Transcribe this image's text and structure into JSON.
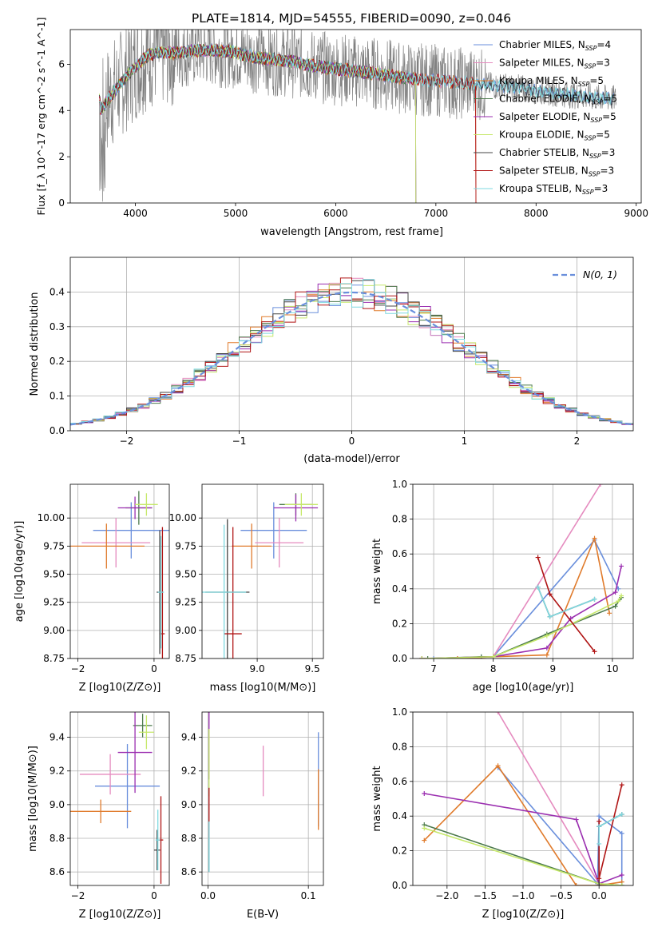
{
  "figure_title": "PLATE=1814, MJD=54555, FIBERID=0090, z=0.046",
  "colors": {
    "chabrier_miles": "#6a8fdc",
    "salpeter_miles": "#e58bbf",
    "kroupa_miles": "#e07b2c",
    "chabrier_elodie": "#4c7a4c",
    "salpeter_elodie": "#9b2fb0",
    "kroupa_elodie": "#c6e86a",
    "chabrier_stelib": "#444444",
    "salpeter_stelib": "#b01515",
    "kroupa_stelib": "#7fd9e0",
    "data": "#808080",
    "gauss": "#6a8fdc",
    "grid": "#b0b0b0"
  },
  "chart_data": [
    {
      "id": "spectrum",
      "type": "line",
      "xlabel": "wavelength [Angstrom, rest frame]",
      "ylabel": "Flux [f_λ 10^-17 erg cm^-2 s^-1 A^-1]",
      "xlim": [
        3350,
        9050
      ],
      "ylim": [
        0,
        7.5
      ],
      "xticks": [
        4000,
        5000,
        6000,
        7000,
        8000,
        9000
      ],
      "yticks": [
        0,
        2,
        4,
        6
      ],
      "grid": false,
      "legend_position": "top-right",
      "legend": [
        {
          "label": "Chabrier MILES, N",
          "sub": "SSP",
          "tail": "=4",
          "color_key": "chabrier_miles"
        },
        {
          "label": "Salpeter MILES, N",
          "sub": "SSP",
          "tail": "=3",
          "color_key": "salpeter_miles"
        },
        {
          "label": "Kroupa MILES, N",
          "sub": "SSP",
          "tail": "=5",
          "color_key": "kroupa_miles"
        },
        {
          "label": "Chabrier ELODIE, N",
          "sub": "SSP",
          "tail": "=5",
          "color_key": "chabrier_elodie"
        },
        {
          "label": "Salpeter ELODIE, N",
          "sub": "SSP",
          "tail": "=5",
          "color_key": "salpeter_elodie"
        },
        {
          "label": "Kroupa ELODIE, N",
          "sub": "SSP",
          "tail": "=5",
          "color_key": "kroupa_elodie"
        },
        {
          "label": "Chabrier STELIB, N",
          "sub": "SSP",
          "tail": "=3",
          "color_key": "chabrier_stelib"
        },
        {
          "label": "Salpeter STELIB, N",
          "sub": "SSP",
          "tail": "=3",
          "color_key": "salpeter_stelib"
        },
        {
          "label": "Kroupa STELIB, N",
          "sub": "SSP",
          "tail": "=3",
          "color_key": "kroupa_stelib"
        }
      ],
      "continuum": [
        [
          3650,
          4.0
        ],
        [
          3700,
          4.3
        ],
        [
          3800,
          4.9
        ],
        [
          3900,
          5.4
        ],
        [
          4000,
          5.9
        ],
        [
          4100,
          6.3
        ],
        [
          4200,
          6.5
        ],
        [
          4400,
          6.5
        ],
        [
          4600,
          6.6
        ],
        [
          4800,
          6.6
        ],
        [
          5000,
          6.5
        ],
        [
          5200,
          6.3
        ],
        [
          5400,
          6.2
        ],
        [
          5600,
          6.1
        ],
        [
          5800,
          5.9
        ],
        [
          6000,
          5.8
        ],
        [
          6200,
          5.7
        ],
        [
          6400,
          5.6
        ],
        [
          6600,
          5.45
        ],
        [
          6800,
          5.35
        ],
        [
          7000,
          5.3
        ],
        [
          7200,
          5.2
        ],
        [
          7400,
          5.15
        ],
        [
          7600,
          5.05
        ],
        [
          7800,
          5.0
        ],
        [
          8000,
          4.85
        ],
        [
          8200,
          4.75
        ],
        [
          8400,
          4.65
        ],
        [
          8600,
          4.55
        ],
        [
          8800,
          4.5
        ]
      ]
    },
    {
      "id": "residuals",
      "type": "bar",
      "xlabel": "(data-model)/error",
      "ylabel": "Normed distribution",
      "xlim": [
        -2.5,
        2.5
      ],
      "ylim": [
        0,
        0.5
      ],
      "xticks": [
        -2,
        -1,
        0,
        1,
        2
      ],
      "yticks": [
        0.0,
        0.1,
        0.2,
        0.3,
        0.4
      ],
      "grid": true,
      "legend_position": "top-right",
      "legend_label": "N(0, 1)",
      "bin_width": 0.1,
      "bin_start": -2.5
    },
    {
      "id": "age_vs_Z",
      "type": "scatter",
      "xlabel": "Z [log10(Z/Z⊙)]",
      "ylabel": "age [log10(age/yr)]",
      "xlim": [
        -2.2,
        0.4
      ],
      "ylim": [
        8.75,
        10.3
      ],
      "xticks": [
        -2,
        0
      ],
      "yticks": [
        8.75,
        9.0,
        9.25,
        9.5,
        9.75,
        10.0
      ],
      "grid": true,
      "points": [
        {
          "s": "chabrier_miles",
          "x": -0.6,
          "xerr": 1.0,
          "y": 9.89,
          "yerr": 0.25
        },
        {
          "s": "salpeter_miles",
          "x": -1.0,
          "xerr": 0.9,
          "y": 9.78,
          "yerr": 0.22
        },
        {
          "s": "kroupa_miles",
          "x": -1.25,
          "xerr": 1.0,
          "y": 9.75,
          "yerr": 0.2
        },
        {
          "s": "chabrier_elodie",
          "x": -0.4,
          "xerr": 0.35,
          "y": 10.09,
          "yerr": 0.15
        },
        {
          "s": "salpeter_elodie",
          "x": -0.5,
          "xerr": 0.45,
          "y": 10.09,
          "yerr": 0.1
        },
        {
          "s": "kroupa_elodie",
          "x": -0.2,
          "xerr": 0.3,
          "y": 10.12,
          "yerr": 0.1
        },
        {
          "s": "chabrier_stelib",
          "x": 0.15,
          "xerr": 0.08,
          "y": 9.34,
          "yerr": 0.55
        },
        {
          "s": "salpeter_stelib",
          "x": 0.22,
          "xerr": 0.06,
          "y": 8.97,
          "yerr": 0.95
        },
        {
          "s": "kroupa_stelib",
          "x": 0.18,
          "xerr": 0.08,
          "y": 9.34,
          "yerr": 0.5
        }
      ]
    },
    {
      "id": "age_vs_mass",
      "type": "scatter",
      "xlabel": "mass [log10(M/M⊙)]",
      "ylabel": "",
      "xlim": [
        8.5,
        9.6
      ],
      "ylim": [
        8.75,
        10.3
      ],
      "xticks": [
        9.0,
        9.5
      ],
      "yticks": [
        8.75,
        9.0,
        9.25,
        9.5,
        9.75,
        10.0
      ],
      "grid": true,
      "points": [
        {
          "s": "chabrier_miles",
          "x": 9.15,
          "xerr": 0.3,
          "y": 9.89,
          "yerr": 0.25
        },
        {
          "s": "salpeter_miles",
          "x": 9.2,
          "xerr": 0.22,
          "y": 9.78,
          "yerr": 0.22
        },
        {
          "s": "kroupa_miles",
          "x": 8.95,
          "xerr": 0.18,
          "y": 9.75,
          "yerr": 0.2
        },
        {
          "s": "chabrier_elodie",
          "x": 9.35,
          "xerr": 0.15,
          "y": 10.12,
          "yerr": 0.1
        },
        {
          "s": "salpeter_elodie",
          "x": 9.35,
          "xerr": 0.2,
          "y": 10.09,
          "yerr": 0.12
        },
        {
          "s": "kroupa_elodie",
          "x": 9.4,
          "xerr": 0.15,
          "y": 10.12,
          "yerr": 0.1
        },
        {
          "s": "chabrier_stelib",
          "x": 8.73,
          "xerr": 0.2,
          "y": 9.34,
          "yerr": 0.65
        },
        {
          "s": "salpeter_stelib",
          "x": 8.78,
          "xerr": 0.08,
          "y": 8.97,
          "yerr": 0.95
        },
        {
          "s": "kroupa_stelib",
          "x": 8.7,
          "xerr": 0.2,
          "y": 9.34,
          "yerr": 0.6
        }
      ]
    },
    {
      "id": "weight_vs_age",
      "type": "line",
      "xlabel": "age [log10(age/yr)]",
      "ylabel": "mass weight",
      "xlim": [
        6.65,
        10.35
      ],
      "ylim": [
        0,
        1.0
      ],
      "xticks": [
        7,
        8,
        9,
        10
      ],
      "yticks": [
        0.0,
        0.2,
        0.4,
        0.6,
        0.8,
        1.0
      ],
      "grid": true,
      "series": [
        {
          "s": "chabrier_miles",
          "x": [
            6.8,
            7.0,
            7.4,
            7.8,
            8.0,
            9.7,
            10.1
          ],
          "y": [
            0,
            0,
            0,
            0.01,
            0.01,
            0.68,
            0.4
          ]
        },
        {
          "s": "salpeter_miles",
          "x": [
            6.8,
            7.4,
            8.0,
            9.8
          ],
          "y": [
            0,
            0,
            0.01,
            1.0
          ]
        },
        {
          "s": "kroupa_miles",
          "x": [
            6.8,
            7.4,
            8.0,
            8.9,
            9.7,
            9.95
          ],
          "y": [
            0,
            0,
            0.01,
            0.02,
            0.69,
            0.26
          ]
        },
        {
          "s": "chabrier_elodie",
          "x": [
            6.9,
            7.8,
            8.0,
            8.9,
            10.05,
            10.15
          ],
          "y": [
            0,
            0.01,
            0.01,
            0.14,
            0.3,
            0.35
          ]
        },
        {
          "s": "salpeter_elodie",
          "x": [
            6.8,
            8.0,
            8.9,
            9.3,
            10.05,
            10.15
          ],
          "y": [
            0,
            0.01,
            0.06,
            0.23,
            0.38,
            0.53
          ]
        },
        {
          "s": "kroupa_elodie",
          "x": [
            6.8,
            8.0,
            8.9,
            10.1,
            10.15
          ],
          "y": [
            0,
            0.01,
            0.13,
            0.33,
            0.36
          ]
        },
        {
          "s": "chabrier_stelib",
          "x": [
            8.75,
            8.95,
            9.7
          ],
          "y": [
            0.41,
            0.24,
            0.34
          ]
        },
        {
          "s": "salpeter_stelib",
          "x": [
            8.75,
            8.95,
            9.7
          ],
          "y": [
            0.58,
            0.37,
            0.04
          ]
        },
        {
          "s": "kroupa_stelib",
          "x": [
            8.75,
            8.95,
            9.7
          ],
          "y": [
            0.41,
            0.24,
            0.34
          ]
        }
      ]
    },
    {
      "id": "mass_vs_Z",
      "type": "scatter",
      "xlabel": "Z [log10(Z/Z⊙)]",
      "ylabel": "mass [log10(M/M⊙)]",
      "xlim": [
        -2.2,
        0.4
      ],
      "ylim": [
        8.52,
        9.55
      ],
      "xticks": [
        -2,
        0
      ],
      "yticks": [
        8.6,
        8.8,
        9.0,
        9.2,
        9.4
      ],
      "grid": true,
      "points": [
        {
          "s": "chabrier_miles",
          "x": -0.7,
          "xerr": 0.85,
          "y": 9.11,
          "yerr": 0.25
        },
        {
          "s": "salpeter_miles",
          "x": -1.15,
          "xerr": 0.8,
          "y": 9.18,
          "yerr": 0.12
        },
        {
          "s": "kroupa_miles",
          "x": -1.4,
          "xerr": 0.8,
          "y": 8.96,
          "yerr": 0.07
        },
        {
          "s": "chabrier_elodie",
          "x": -0.3,
          "xerr": 0.25,
          "y": 9.47,
          "yerr": 0.07
        },
        {
          "s": "salpeter_elodie",
          "x": -0.5,
          "xerr": 0.45,
          "y": 9.31,
          "yerr": 0.24
        },
        {
          "s": "kroupa_elodie",
          "x": -0.2,
          "xerr": 0.2,
          "y": 9.43,
          "yerr": 0.1
        },
        {
          "s": "chabrier_stelib",
          "x": 0.08,
          "xerr": 0.08,
          "y": 8.73,
          "yerr": 0.12
        },
        {
          "s": "salpeter_stelib",
          "x": 0.18,
          "xerr": 0.06,
          "y": 8.79,
          "yerr": 0.26
        },
        {
          "s": "kroupa_stelib",
          "x": 0.1,
          "xerr": 0.06,
          "y": 8.79,
          "yerr": 0.18
        }
      ]
    },
    {
      "id": "mass_vs_ebv",
      "type": "scatter",
      "xlabel": "E(B-V)",
      "ylabel": "",
      "xlim": [
        -0.006,
        0.115
      ],
      "ylim": [
        8.52,
        9.55
      ],
      "xticks": [
        0.0,
        0.1
      ],
      "yticks": [
        8.6,
        8.8,
        9.0,
        9.2,
        9.4
      ],
      "grid": true,
      "points": [
        {
          "s": "chabrier_miles",
          "x": 0.11,
          "xerr": 0,
          "y": 9.15,
          "yerr": 0.28
        },
        {
          "s": "salpeter_miles",
          "x": 0.055,
          "xerr": 0,
          "y": 9.2,
          "yerr": 0.15
        },
        {
          "s": "kroupa_miles",
          "x": 0.11,
          "xerr": 0,
          "y": 9.03,
          "yerr": 0.18
        },
        {
          "s": "chabrier_elodie",
          "x": 0.001,
          "xerr": 0,
          "y": 9.3,
          "yerr": 0.15
        },
        {
          "s": "salpeter_elodie",
          "x": 0.001,
          "xerr": 0,
          "y": 9.35,
          "yerr": 0.2
        },
        {
          "s": "kroupa_elodie",
          "x": 0.001,
          "xerr": 0,
          "y": 9.25,
          "yerr": 0.2
        },
        {
          "s": "chabrier_stelib",
          "x": 0.001,
          "xerr": 0,
          "y": 8.75,
          "yerr": 0.15
        },
        {
          "s": "salpeter_stelib",
          "x": 0.001,
          "xerr": 0,
          "y": 8.95,
          "yerr": 0.15
        },
        {
          "s": "kroupa_stelib",
          "x": 0.001,
          "xerr": 0,
          "y": 8.75,
          "yerr": 0.15
        }
      ]
    },
    {
      "id": "weight_vs_Z",
      "type": "line",
      "xlabel": "Z [log10(Z/Z⊙)]",
      "ylabel": "mass weight",
      "xlim": [
        -2.45,
        0.45
      ],
      "ylim": [
        0,
        1.0
      ],
      "xticks": [
        -2.0,
        -1.5,
        -1.0,
        -0.5,
        0.0
      ],
      "yticks": [
        0.0,
        0.2,
        0.4,
        0.6,
        0.8,
        1.0
      ],
      "grid": true,
      "series": [
        {
          "s": "chabrier_miles",
          "x": [
            -1.33,
            -0.02,
            0.0,
            0.3,
            0.3
          ],
          "y": [
            0.68,
            0.01,
            0.4,
            0.3,
            0.0
          ]
        },
        {
          "s": "salpeter_miles",
          "x": [
            -1.33,
            0.0
          ],
          "y": [
            1.0,
            0.01
          ]
        },
        {
          "s": "kroupa_miles",
          "x": [
            -2.3,
            -1.33,
            -0.3,
            0.0,
            0.3
          ],
          "y": [
            0.26,
            0.69,
            0.0,
            0.0,
            0.02
          ]
        },
        {
          "s": "chabrier_elodie",
          "x": [
            -2.3,
            0.0,
            0.3
          ],
          "y": [
            0.35,
            0.01,
            0.0
          ]
        },
        {
          "s": "salpeter_elodie",
          "x": [
            -2.3,
            -0.3,
            0.0,
            0.3
          ],
          "y": [
            0.53,
            0.38,
            0.01,
            0.06
          ]
        },
        {
          "s": "kroupa_elodie",
          "x": [
            -2.3,
            0.0,
            0.3
          ],
          "y": [
            0.33,
            0.01,
            0.0
          ]
        },
        {
          "s": "chabrier_stelib",
          "x": [
            0.0,
            0.0,
            0.3
          ],
          "y": [
            0.0,
            0.34,
            0.41
          ]
        },
        {
          "s": "salpeter_stelib",
          "x": [
            0.0,
            0.0,
            0.3
          ],
          "y": [
            0.37,
            0.04,
            0.58
          ]
        },
        {
          "s": "kroupa_stelib",
          "x": [
            0.0,
            0.0,
            0.3
          ],
          "y": [
            0.24,
            0.34,
            0.41
          ]
        }
      ]
    }
  ]
}
